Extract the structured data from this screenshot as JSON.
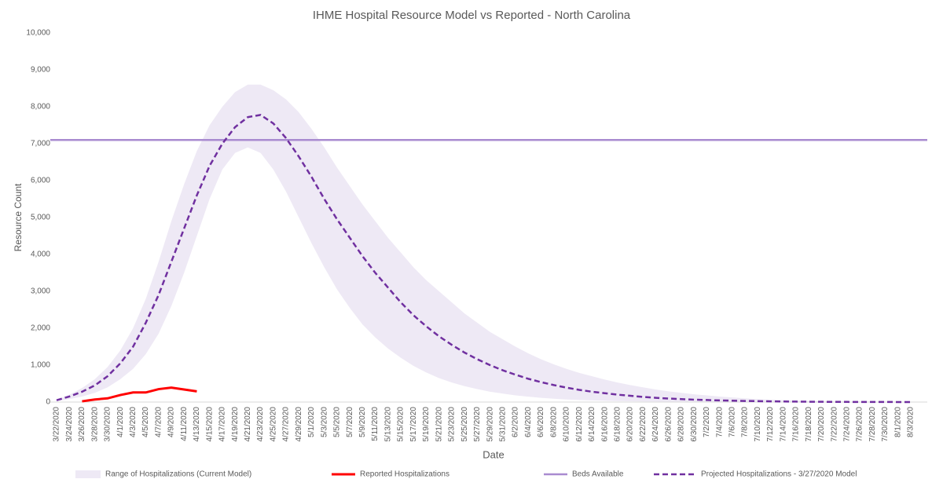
{
  "chart_data": {
    "type": "line",
    "title": "IHME Hospital Resource Model vs Reported - North Carolina",
    "x_label": "Date",
    "y_label": "Resource Count",
    "categories": [
      "3/22/2020",
      "3/24/2020",
      "3/26/2020",
      "3/28/2020",
      "3/30/2020",
      "4/1/2020",
      "4/3/2020",
      "4/5/2020",
      "4/7/2020",
      "4/9/2020",
      "4/11/2020",
      "4/13/2020",
      "4/15/2020",
      "4/17/2020",
      "4/19/2020",
      "4/21/2020",
      "4/23/2020",
      "4/25/2020",
      "4/27/2020",
      "4/29/2020",
      "5/1/2020",
      "5/3/2020",
      "5/5/2020",
      "5/7/2020",
      "5/9/2020",
      "5/11/2020",
      "5/13/2020",
      "5/15/2020",
      "5/17/2020",
      "5/19/2020",
      "5/21/2020",
      "5/23/2020",
      "5/25/2020",
      "5/27/2020",
      "5/29/2020",
      "5/31/2020",
      "6/2/2020",
      "6/4/2020",
      "6/6/2020",
      "6/8/2020",
      "6/10/2020",
      "6/12/2020",
      "6/14/2020",
      "6/16/2020",
      "6/18/2020",
      "6/20/2020",
      "6/22/2020",
      "6/24/2020",
      "6/26/2020",
      "6/28/2020",
      "6/30/2020",
      "7/2/2020",
      "7/4/2020",
      "7/6/2020",
      "7/8/2020",
      "7/10/2020",
      "7/12/2020",
      "7/14/2020",
      "7/16/2020",
      "7/18/2020",
      "7/20/2020",
      "7/22/2020",
      "7/24/2020",
      "7/26/2020",
      "7/28/2020",
      "7/30/2020",
      "8/1/2020",
      "8/3/2020"
    ],
    "band": {
      "name": "Range of Hospitalizations (Current Model)",
      "color": "#eee9f5",
      "upper": [
        50,
        200,
        380,
        620,
        950,
        1400,
        2000,
        2800,
        3800,
        4900,
        5900,
        6800,
        7500,
        8000,
        8400,
        8600,
        8600,
        8450,
        8200,
        7850,
        7400,
        6900,
        6350,
        5850,
        5350,
        4900,
        4450,
        4050,
        3650,
        3300,
        3000,
        2700,
        2400,
        2150,
        1900,
        1700,
        1500,
        1320,
        1160,
        1020,
        900,
        790,
        700,
        610,
        530,
        460,
        400,
        340,
        290,
        250,
        210,
        180,
        150,
        125,
        100,
        80,
        65,
        50,
        40,
        30,
        22,
        16,
        12,
        8,
        6,
        4,
        3,
        2
      ],
      "lower": [
        20,
        80,
        150,
        250,
        400,
        620,
        900,
        1300,
        1850,
        2600,
        3500,
        4500,
        5500,
        6300,
        6750,
        6900,
        6750,
        6300,
        5700,
        5000,
        4300,
        3650,
        3050,
        2550,
        2100,
        1750,
        1450,
        1200,
        980,
        800,
        650,
        530,
        430,
        350,
        280,
        230,
        180,
        145,
        115,
        90,
        70,
        55,
        45,
        35,
        27,
        20,
        15,
        12,
        9,
        7,
        5,
        4,
        3,
        2,
        2,
        1,
        1,
        1,
        1,
        1,
        1,
        0,
        0,
        0,
        0,
        0,
        0,
        0
      ]
    },
    "series": [
      {
        "name": "Reported Hospitalizations",
        "color": "#ff0000",
        "dashed": false,
        "values": [
          null,
          null,
          20,
          70,
          100,
          190,
          260,
          260,
          350,
          390,
          340,
          290,
          null,
          null,
          null,
          null,
          null,
          null,
          null,
          null,
          null,
          null,
          null,
          null,
          null,
          null,
          null,
          null,
          null,
          null,
          null,
          null,
          null,
          null,
          null,
          null,
          null,
          null,
          null,
          null,
          null,
          null,
          null,
          null,
          null,
          null,
          null,
          null,
          null,
          null,
          null,
          null,
          null,
          null,
          null,
          null,
          null,
          null,
          null,
          null,
          null,
          null,
          null,
          null,
          null,
          null,
          null,
          null
        ]
      },
      {
        "name": "Projected Hospitalizations - 3/27/2020 Model",
        "color": "#7030a0",
        "dashed": true,
        "values": [
          50,
          150,
          280,
          450,
          700,
          1050,
          1500,
          2150,
          2900,
          3800,
          4700,
          5600,
          6400,
          7000,
          7450,
          7720,
          7780,
          7550,
          7150,
          6650,
          6100,
          5500,
          4950,
          4450,
          3950,
          3500,
          3100,
          2700,
          2350,
          2050,
          1780,
          1550,
          1340,
          1160,
          1000,
          860,
          740,
          630,
          540,
          460,
          390,
          330,
          280,
          240,
          200,
          170,
          140,
          115,
          95,
          80,
          65,
          55,
          45,
          37,
          30,
          24,
          19,
          15,
          12,
          9,
          7,
          5,
          4,
          3,
          2,
          2,
          1,
          1
        ]
      }
    ],
    "reference_line": {
      "name": "Beds Available",
      "color": "#a98bd0",
      "value": 7100
    },
    "ylim": [
      0,
      10000
    ],
    "yticks": [
      0,
      {
        "value": 1000,
        "label": "1,000"
      },
      {
        "value": 2000,
        "label": "2,000"
      },
      {
        "value": 3000,
        "label": "3,000"
      },
      {
        "value": 4000,
        "label": "4,000"
      },
      {
        "value": 5000,
        "label": "5,000"
      },
      {
        "value": 6000,
        "label": "6,000"
      },
      {
        "value": 7000,
        "label": "7,000"
      },
      {
        "value": 8000,
        "label": "8,000"
      },
      {
        "value": 9000,
        "label": "9,000"
      },
      {
        "value": 10000,
        "label": "10,000"
      }
    ],
    "grid": false,
    "legend": "bottom"
  }
}
